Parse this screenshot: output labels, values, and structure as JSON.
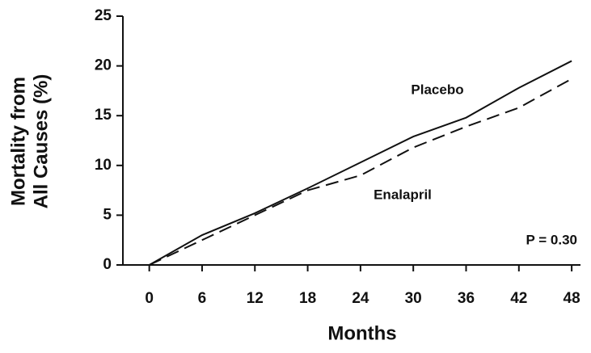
{
  "chart_data": {
    "type": "line",
    "y_label": [
      "Mortality from",
      "All Causes (%)"
    ],
    "x_label": "Months",
    "annotation": "P = 0.30",
    "x": [
      0,
      6,
      12,
      18,
      24,
      30,
      36,
      42,
      48
    ],
    "series": [
      {
        "name": "Placebo",
        "color": "#111111",
        "dashed": false,
        "values": [
          0,
          3,
          5.2,
          7.7,
          10.3,
          12.9,
          14.8,
          17.8,
          20.5
        ]
      },
      {
        "name": "Enalapril",
        "color": "#111111",
        "dashed": true,
        "values": [
          0,
          2.5,
          5,
          7.5,
          9,
          11.8,
          13.9,
          15.8,
          18.7
        ]
      }
    ],
    "xlim": [
      -3,
      49
    ],
    "ylim": [
      0,
      25
    ],
    "xticks": [
      0,
      6,
      12,
      18,
      24,
      30,
      36,
      42,
      48
    ],
    "yticks": [
      0,
      5,
      10,
      15,
      20,
      25
    ],
    "grid": false
  }
}
